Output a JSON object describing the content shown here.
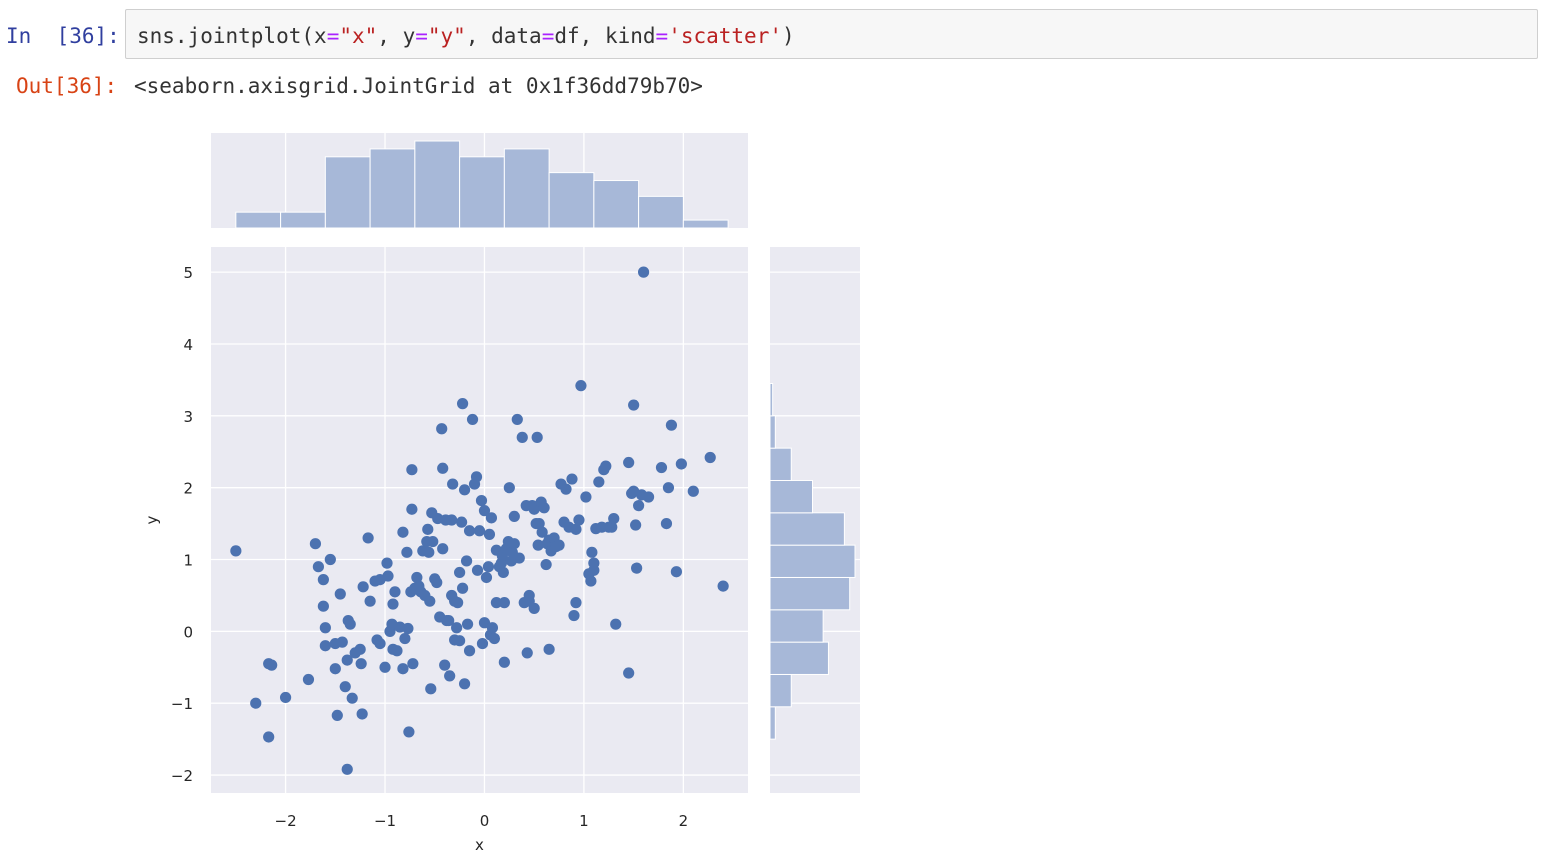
{
  "notebook": {
    "in_prompt": "In  [36]:",
    "out_prompt": "Out[36]:",
    "code": {
      "fn": "sns.jointplot",
      "open": "(",
      "p1": "x",
      "eq": "=",
      "s1": "\"x\"",
      "sep": ", ",
      "p2": "y",
      "s2": "\"y\"",
      "p3": "data",
      "v3": "df",
      "p4": "kind",
      "s4": "'scatter'",
      "close": ")"
    },
    "output": "<seaborn.axisgrid.JointGrid at 0x1f36dd79b70>"
  },
  "colors": {
    "axes_bg": "#eaeaf2",
    "grid": "#ffffff",
    "point": "#4c72b0",
    "hist_fill": "#a7b8d8"
  },
  "chart_data": {
    "type": "scatter",
    "kind": "jointplot",
    "xlabel": "x",
    "ylabel": "y",
    "xlim": [
      -2.75,
      2.65
    ],
    "ylim": [
      -2.25,
      5.35
    ],
    "xticks": [
      -2,
      -1,
      0,
      1,
      2
    ],
    "yticks": [
      -2,
      -1,
      0,
      1,
      2,
      3,
      4,
      5
    ],
    "xtick_labels": [
      "−2",
      "−1",
      "0",
      "1",
      "2"
    ],
    "ytick_labels": [
      "−2",
      "−1",
      "0",
      "1",
      "2",
      "3",
      "4",
      "5"
    ],
    "grid": true,
    "points": [
      [
        -2.5,
        1.12
      ],
      [
        -2.3,
        -1.0
      ],
      [
        -2.17,
        -1.47
      ],
      [
        -2.17,
        -0.45
      ],
      [
        -2.14,
        -0.47
      ],
      [
        -2.0,
        -0.92
      ],
      [
        -1.77,
        -0.67
      ],
      [
        -1.7,
        1.22
      ],
      [
        -1.67,
        0.9
      ],
      [
        -1.62,
        0.72
      ],
      [
        -1.62,
        0.35
      ],
      [
        -1.6,
        0.05
      ],
      [
        -1.6,
        -0.2
      ],
      [
        -1.55,
        1.0
      ],
      [
        -1.5,
        -0.17
      ],
      [
        -1.5,
        -0.52
      ],
      [
        -1.48,
        -1.17
      ],
      [
        -1.45,
        0.52
      ],
      [
        -1.43,
        -0.15
      ],
      [
        -1.4,
        -0.77
      ],
      [
        -1.38,
        -1.92
      ],
      [
        -1.38,
        -0.4
      ],
      [
        -1.37,
        0.15
      ],
      [
        -1.35,
        0.1
      ],
      [
        -1.33,
        -0.93
      ],
      [
        -1.3,
        -0.3
      ],
      [
        -1.25,
        -0.25
      ],
      [
        -1.24,
        -0.45
      ],
      [
        -1.23,
        -1.15
      ],
      [
        -1.22,
        0.62
      ],
      [
        -1.17,
        1.3
      ],
      [
        -1.15,
        0.42
      ],
      [
        -1.1,
        0.7
      ],
      [
        -1.08,
        -0.12
      ],
      [
        -1.05,
        0.72
      ],
      [
        -1.05,
        -0.17
      ],
      [
        -1.0,
        -0.5
      ],
      [
        -0.98,
        0.95
      ],
      [
        -0.97,
        0.77
      ],
      [
        -0.95,
        0.0
      ],
      [
        -0.93,
        0.1
      ],
      [
        -0.92,
        -0.25
      ],
      [
        -0.92,
        0.38
      ],
      [
        -0.9,
        0.55
      ],
      [
        -0.88,
        -0.27
      ],
      [
        -0.85,
        0.06
      ],
      [
        -0.82,
        1.38
      ],
      [
        -0.82,
        -0.52
      ],
      [
        -0.8,
        -0.1
      ],
      [
        -0.78,
        1.1
      ],
      [
        -0.77,
        0.04
      ],
      [
        -0.76,
        -1.4
      ],
      [
        -0.74,
        0.55
      ],
      [
        -0.73,
        2.25
      ],
      [
        -0.73,
        1.7
      ],
      [
        -0.72,
        -0.45
      ],
      [
        -0.7,
        0.6
      ],
      [
        -0.68,
        0.75
      ],
      [
        -0.66,
        0.63
      ],
      [
        -0.64,
        0.55
      ],
      [
        -0.62,
        1.12
      ],
      [
        -0.6,
        0.5
      ],
      [
        -0.58,
        1.25
      ],
      [
        -0.57,
        1.42
      ],
      [
        -0.56,
        1.1
      ],
      [
        -0.55,
        0.42
      ],
      [
        -0.54,
        -0.8
      ],
      [
        -0.53,
        1.65
      ],
      [
        -0.52,
        1.25
      ],
      [
        -0.5,
        0.73
      ],
      [
        -0.48,
        0.68
      ],
      [
        -0.47,
        1.57
      ],
      [
        -0.45,
        0.2
      ],
      [
        -0.43,
        2.82
      ],
      [
        -0.42,
        1.15
      ],
      [
        -0.42,
        2.27
      ],
      [
        -0.4,
        -0.47
      ],
      [
        -0.39,
        1.55
      ],
      [
        -0.38,
        0.15
      ],
      [
        -0.36,
        0.15
      ],
      [
        -0.35,
        -0.62
      ],
      [
        -0.33,
        1.55
      ],
      [
        -0.33,
        0.5
      ],
      [
        -0.32,
        2.05
      ],
      [
        -0.3,
        0.42
      ],
      [
        -0.3,
        -0.12
      ],
      [
        -0.28,
        0.05
      ],
      [
        -0.27,
        0.4
      ],
      [
        -0.25,
        -0.13
      ],
      [
        -0.25,
        0.82
      ],
      [
        -0.23,
        1.52
      ],
      [
        -0.22,
        3.17
      ],
      [
        -0.22,
        0.6
      ],
      [
        -0.2,
        1.97
      ],
      [
        -0.2,
        -0.73
      ],
      [
        -0.18,
        0.98
      ],
      [
        -0.17,
        0.1
      ],
      [
        -0.15,
        1.4
      ],
      [
        -0.15,
        -0.27
      ],
      [
        -0.12,
        2.95
      ],
      [
        -0.1,
        2.05
      ],
      [
        -0.08,
        2.15
      ],
      [
        -0.07,
        0.85
      ],
      [
        -0.05,
        1.4
      ],
      [
        -0.03,
        1.82
      ],
      [
        -0.02,
        -0.17
      ],
      [
        0.0,
        1.68
      ],
      [
        0.0,
        0.12
      ],
      [
        0.02,
        0.75
      ],
      [
        0.04,
        0.9
      ],
      [
        0.05,
        1.35
      ],
      [
        0.06,
        -0.05
      ],
      [
        0.07,
        1.58
      ],
      [
        0.08,
        0.05
      ],
      [
        0.1,
        -0.1
      ],
      [
        0.12,
        1.13
      ],
      [
        0.12,
        0.4
      ],
      [
        0.15,
        0.9
      ],
      [
        0.17,
        0.95
      ],
      [
        0.18,
        1.05
      ],
      [
        0.19,
        0.82
      ],
      [
        0.2,
        0.4
      ],
      [
        0.2,
        -0.43
      ],
      [
        0.22,
        1.15
      ],
      [
        0.24,
        1.25
      ],
      [
        0.25,
        2.0
      ],
      [
        0.27,
        0.98
      ],
      [
        0.28,
        1.1
      ],
      [
        0.3,
        1.6
      ],
      [
        0.3,
        1.22
      ],
      [
        0.33,
        2.95
      ],
      [
        0.35,
        1.02
      ],
      [
        0.38,
        2.7
      ],
      [
        0.4,
        0.4
      ],
      [
        0.42,
        1.75
      ],
      [
        0.43,
        -0.3
      ],
      [
        0.45,
        0.5
      ],
      [
        0.45,
        0.42
      ],
      [
        0.48,
        1.75
      ],
      [
        0.5,
        1.7
      ],
      [
        0.5,
        0.32
      ],
      [
        0.52,
        1.5
      ],
      [
        0.53,
        2.7
      ],
      [
        0.54,
        1.2
      ],
      [
        0.55,
        1.5
      ],
      [
        0.57,
        1.8
      ],
      [
        0.58,
        1.38
      ],
      [
        0.6,
        1.72
      ],
      [
        0.62,
        0.93
      ],
      [
        0.63,
        1.22
      ],
      [
        0.65,
        -0.25
      ],
      [
        0.65,
        1.27
      ],
      [
        0.67,
        1.12
      ],
      [
        0.7,
        1.3
      ],
      [
        0.72,
        1.18
      ],
      [
        0.75,
        1.2
      ],
      [
        0.77,
        2.05
      ],
      [
        0.8,
        1.52
      ],
      [
        0.82,
        1.98
      ],
      [
        0.85,
        1.45
      ],
      [
        0.88,
        2.12
      ],
      [
        0.9,
        0.22
      ],
      [
        0.92,
        1.42
      ],
      [
        0.92,
        0.4
      ],
      [
        0.95,
        1.55
      ],
      [
        0.97,
        3.42
      ],
      [
        1.02,
        1.87
      ],
      [
        1.05,
        0.8
      ],
      [
        1.07,
        0.7
      ],
      [
        1.08,
        1.1
      ],
      [
        1.1,
        0.85
      ],
      [
        1.1,
        0.95
      ],
      [
        1.12,
        1.43
      ],
      [
        1.15,
        2.08
      ],
      [
        1.18,
        1.45
      ],
      [
        1.2,
        2.25
      ],
      [
        1.22,
        2.3
      ],
      [
        1.25,
        1.45
      ],
      [
        1.28,
        1.45
      ],
      [
        1.3,
        1.57
      ],
      [
        1.32,
        0.1
      ],
      [
        1.45,
        2.35
      ],
      [
        1.45,
        -0.58
      ],
      [
        1.48,
        1.92
      ],
      [
        1.5,
        1.95
      ],
      [
        1.5,
        3.15
      ],
      [
        1.52,
        1.48
      ],
      [
        1.53,
        0.88
      ],
      [
        1.55,
        1.75
      ],
      [
        1.58,
        1.9
      ],
      [
        1.6,
        5.0
      ],
      [
        1.65,
        1.87
      ],
      [
        1.78,
        2.28
      ],
      [
        1.83,
        1.5
      ],
      [
        1.85,
        2.0
      ],
      [
        1.88,
        2.87
      ],
      [
        1.93,
        0.83
      ],
      [
        1.98,
        2.33
      ],
      [
        2.1,
        1.95
      ],
      [
        2.27,
        2.42
      ],
      [
        2.4,
        0.63
      ]
    ],
    "marginal_x": {
      "bin_edges": [
        -2.5,
        -2.05,
        -1.6,
        -1.15,
        -0.7,
        -0.25,
        0.2,
        0.65,
        1.1,
        1.55,
        2.0,
        2.45
      ],
      "counts": [
        2,
        2,
        9,
        10,
        11,
        9,
        10,
        7,
        6,
        4,
        1
      ]
    },
    "marginal_y": {
      "bin_edges": [
        -1.5,
        -1.05,
        -0.6,
        -0.15,
        0.3,
        0.75,
        1.2,
        1.65,
        2.1,
        2.55,
        3.0,
        3.45
      ],
      "counts": [
        1,
        4,
        11,
        10,
        15,
        16,
        14,
        8,
        4,
        1,
        0.5
      ]
    }
  }
}
